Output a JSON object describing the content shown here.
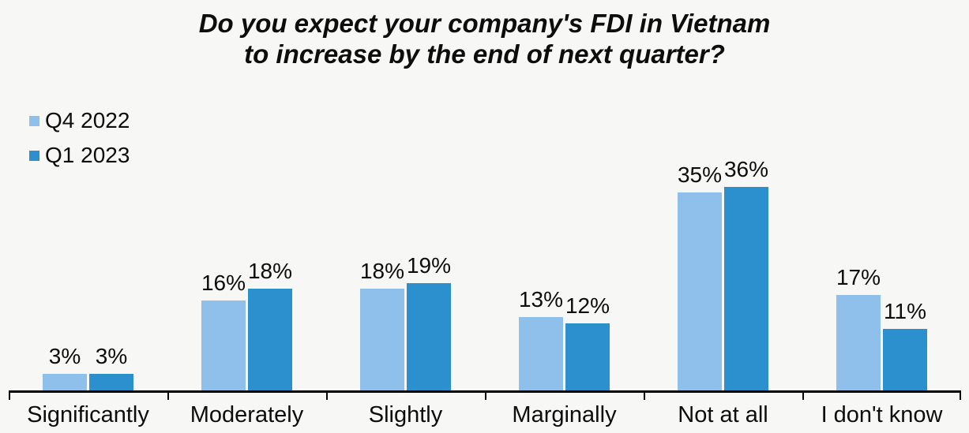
{
  "header": {
    "line1": "Do you expect your company's FDI in Vietnam",
    "line2": "to increase by the end of next quarter?"
  },
  "chart_data": {
    "type": "bar",
    "title": "Do you expect your company's FDI in Vietnam to increase by the end of next quarter?",
    "categories": [
      "Significantly",
      "Moderately",
      "Slightly",
      "Marginally",
      "Not at all",
      "I don't know"
    ],
    "series": [
      {
        "name": "Q4 2022",
        "color": "#8fc0ec",
        "values": [
          3,
          16,
          18,
          13,
          35,
          17
        ]
      },
      {
        "name": "Q1 2023",
        "color": "#2b90cd",
        "values": [
          3,
          18,
          19,
          12,
          36,
          11
        ]
      }
    ],
    "value_suffix": "%",
    "data_labels": true,
    "grid": false,
    "legend_position": "top-left",
    "xlabel": "",
    "ylabel": "",
    "ylim": [
      0,
      40
    ]
  },
  "colors": {
    "background": "#f7f7f5",
    "axis": "#000000",
    "text": "#0d0d0d"
  }
}
